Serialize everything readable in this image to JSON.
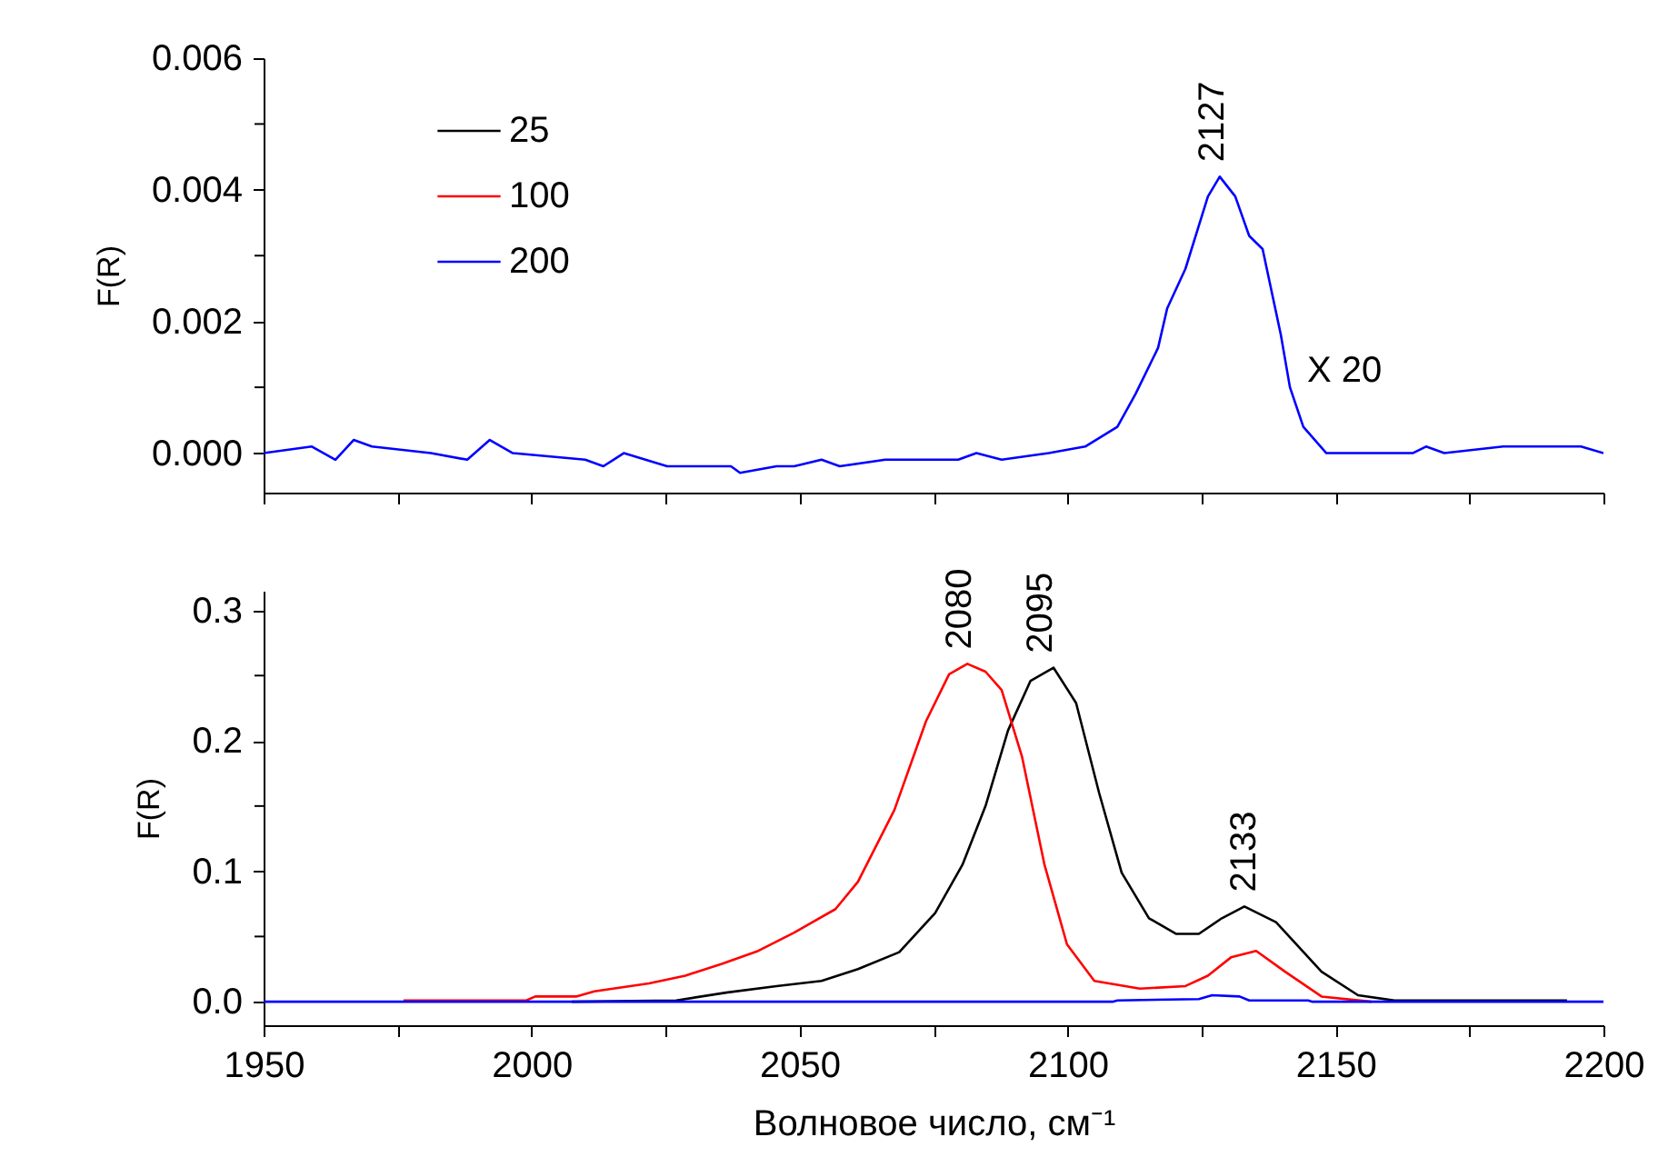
{
  "chart_data": [
    {
      "type": "line",
      "ylabel": "F(R)",
      "xlim": [
        1950,
        2200
      ],
      "ylim": [
        -0.0006,
        0.006
      ],
      "xticks": [
        1950,
        {
          "value": 1975,
          "label": null
        },
        2000,
        {
          "value": 2025,
          "label": null
        },
        2050,
        {
          "value": 2075,
          "label": null
        },
        2100,
        {
          "value": 2125,
          "label": null
        },
        2150,
        {
          "value": 2175,
          "label": null
        },
        2200
      ],
      "yticks": [
        {
          "value": 0,
          "label": "0.000"
        },
        {
          "value": 0.001,
          "label": null
        },
        {
          "value": 0.002,
          "label": "0.002"
        },
        {
          "value": 0.003,
          "label": null
        },
        {
          "value": 0.004,
          "label": "0.004"
        },
        {
          "value": 0.005,
          "label": null
        },
        {
          "value": 0.006,
          "label": "0.006"
        }
      ],
      "tick_labels": "y",
      "grid": false,
      "legend": "top left",
      "line_style": "solid",
      "marker": "none",
      "series": [
        {
          "name": "25",
          "color": "#000000"
        },
        {
          "name": "100",
          "color": "#ff0000"
        },
        {
          "name": "200",
          "color": "#0000ff",
          "x": [
            1950,
            1959,
            1963.4,
            1966.8,
            1970.2,
            1981.2,
            1988,
            1992.2,
            1996.5,
            2010,
            2013.4,
            2017.2,
            2025.3,
            2037.2,
            2038.9,
            2045.7,
            2049,
            2054.1,
            2057.5,
            2066,
            2079.6,
            2083,
            2087.7,
            2096.5,
            2103.3,
            2109.3,
            2112.7,
            2116.9,
            2118.6,
            2122,
            2126.2,
            2128.4,
            2131.3,
            2133.9,
            2136.4,
            2139.8,
            2141.5,
            2144,
            2148.3,
            2164.4,
            2166.9,
            2170.3,
            2181.3,
            2195.8,
            2200
          ],
          "values": [
            0,
            0.0001,
            -0.0001,
            0.0002,
            0.0001,
            0,
            -0.0001,
            0.0002,
            0,
            -0.0001,
            -0.0002,
            0,
            -0.0002,
            -0.0002,
            -0.0003,
            -0.0002,
            -0.0002,
            -0.0001,
            -0.0002,
            -0.0001,
            -0.0001,
            0,
            -0.0001,
            0,
            0.0001,
            0.0004,
            0.0009,
            0.0016,
            0.0022,
            0.0028,
            0.0039,
            0.0042,
            0.0039,
            0.0033,
            0.0031,
            0.0018,
            0.001,
            0.0004,
            0,
            0,
            0.0001,
            0,
            0.0001,
            0.0001,
            0
          ]
        }
      ],
      "annotations": [
        {
          "text": "2127",
          "x": 2127,
          "y": 0.0042
        },
        "X 20"
      ]
    },
    {
      "type": "line",
      "xlabel": "Волновое число, см⁻¹",
      "ylabel": "F(R)",
      "xlim": [
        1950,
        2200
      ],
      "ylim": [
        -0.018,
        0.315
      ],
      "xticks": [
        1950,
        {
          "value": 1975,
          "label": null
        },
        2000,
        {
          "value": 2025,
          "label": null
        },
        2050,
        {
          "value": 2075,
          "label": null
        },
        2100,
        {
          "value": 2125,
          "label": null
        },
        2150,
        {
          "value": 2175,
          "label": null
        },
        2200
      ],
      "yticks": [
        {
          "value": 0,
          "label": "0.0"
        },
        {
          "value": 0.05,
          "label": null
        },
        {
          "value": 0.1,
          "label": "0.1"
        },
        {
          "value": 0.15,
          "label": null
        },
        {
          "value": 0.2,
          "label": "0.2"
        },
        {
          "value": 0.25,
          "label": null
        },
        {
          "value": 0.3,
          "label": "0.3"
        }
      ],
      "grid": false,
      "line_style": "solid",
      "marker": "none",
      "series": [
        {
          "color": "#000000",
          "x": [
            2007.5,
            2027,
            2036.3,
            2045.7,
            2054.1,
            2060.9,
            2068.6,
            2075.3,
            2080.4,
            2084.7,
            2088.9,
            2093.1,
            2097.4,
            2101.6,
            2105.9,
            2110.1,
            2115.2,
            2120.3,
            2124.5,
            2128.8,
            2133,
            2138.9,
            2147.4,
            2154.2,
            2161,
            2193.2
          ],
          "values": [
            0,
            0.001,
            0.007,
            0.012,
            0.016,
            0.025,
            0.038,
            0.068,
            0.105,
            0.15,
            0.208,
            0.246,
            0.256,
            0.229,
            0.16,
            0.099,
            0.064,
            0.052,
            0.052,
            0.064,
            0.073,
            0.061,
            0.023,
            0.005,
            0.001,
            0.001
          ]
        },
        {
          "color": "#ff0000",
          "x": [
            1976.1,
            1999,
            2000.7,
            2008.3,
            2011.7,
            2021.9,
            2028.7,
            2035.5,
            2042.3,
            2049,
            2056.7,
            2060.9,
            2067.7,
            2073.6,
            2077.9,
            2081.3,
            2084.7,
            2087.7,
            2091.5,
            2095.7,
            2099.9,
            2105,
            2113.5,
            2122,
            2126.2,
            2130.5,
            2135.2,
            2140.6,
            2147.4,
            2156.7
          ],
          "values": [
            0.001,
            0.001,
            0.004,
            0.004,
            0.008,
            0.014,
            0.02,
            0.029,
            0.039,
            0.053,
            0.071,
            0.092,
            0.147,
            0.215,
            0.251,
            0.259,
            0.253,
            0.239,
            0.188,
            0.105,
            0.044,
            0.016,
            0.01,
            0.012,
            0.02,
            0.034,
            0.039,
            0.023,
            0.004,
            0
          ]
        },
        {
          "color": "#0000ff",
          "x": [
            1950,
            2108.4,
            2109.3,
            2124.5,
            2127,
            2132.1,
            2133.9,
            2144.9,
            2145.7,
            2200
          ],
          "values": [
            0,
            0,
            0.001,
            0.002,
            0.005,
            0.004,
            0.001,
            0.001,
            0,
            0
          ]
        }
      ],
      "annotations": [
        {
          "text": "2080",
          "x": 2080,
          "y": 0.259
        },
        {
          "text": "2095",
          "x": 2095,
          "y": 0.256
        },
        {
          "text": "2133",
          "x": 2133,
          "y": 0.073
        }
      ]
    }
  ]
}
